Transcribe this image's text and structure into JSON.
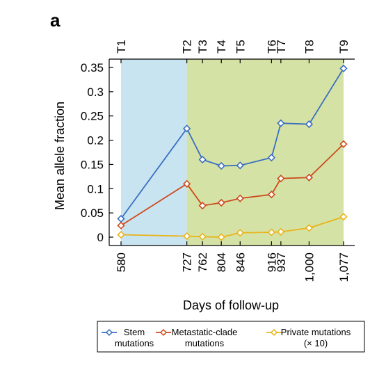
{
  "panel_label": "a",
  "chart_data": {
    "type": "line",
    "x": [
      580,
      727,
      762,
      804,
      846,
      916,
      937,
      1000,
      1077
    ],
    "x_tick_labels": [
      "580",
      "727",
      "762",
      "804",
      "846",
      "916",
      "937",
      "1,000",
      "1,077"
    ],
    "timepoints": [
      "T1",
      "T2",
      "T3",
      "T4",
      "T5",
      "T6",
      "T7",
      "T8",
      "T9"
    ],
    "xlabel": "Days of follow-up",
    "ylabel": "Mean allele fraction",
    "ylim": [
      0,
      0.35
    ],
    "y_ticks": [
      0,
      0.05,
      0.1,
      0.15,
      0.2,
      0.25,
      0.3,
      0.35
    ],
    "y_tick_labels": [
      "0",
      "0.05",
      "0.1",
      "0.15",
      "0.2",
      "0.25",
      "0.3",
      "0.35"
    ],
    "shaded_regions": [
      {
        "from": 580,
        "to": 727,
        "color": "#c9e4f1"
      },
      {
        "from": 727,
        "to": 1077,
        "color": "#d5e2a5"
      }
    ],
    "series": [
      {
        "name": "Stem mutations",
        "legend_lines": [
          "Stem",
          "mutations"
        ],
        "color": "#3a6fc0",
        "values": [
          0.038,
          0.224,
          0.16,
          0.147,
          0.148,
          0.164,
          0.235,
          0.233,
          0.348
        ]
      },
      {
        "name": "Metastatic-clade mutations",
        "legend_lines": [
          "Metastatic-clade",
          "mutations"
        ],
        "color": "#cc4a1c",
        "values": [
          0.024,
          0.11,
          0.065,
          0.071,
          0.08,
          0.088,
          0.121,
          0.123,
          0.192
        ]
      },
      {
        "name": "Private mutations (× 10)",
        "legend_lines": [
          "Private mutations",
          "(× 10)"
        ],
        "color": "#e8b418",
        "values": [
          0.005,
          0.002,
          0.001,
          0.0,
          0.009,
          0.01,
          0.011,
          0.019,
          0.042
        ]
      }
    ],
    "grid": false,
    "legend_position": "bottom"
  }
}
